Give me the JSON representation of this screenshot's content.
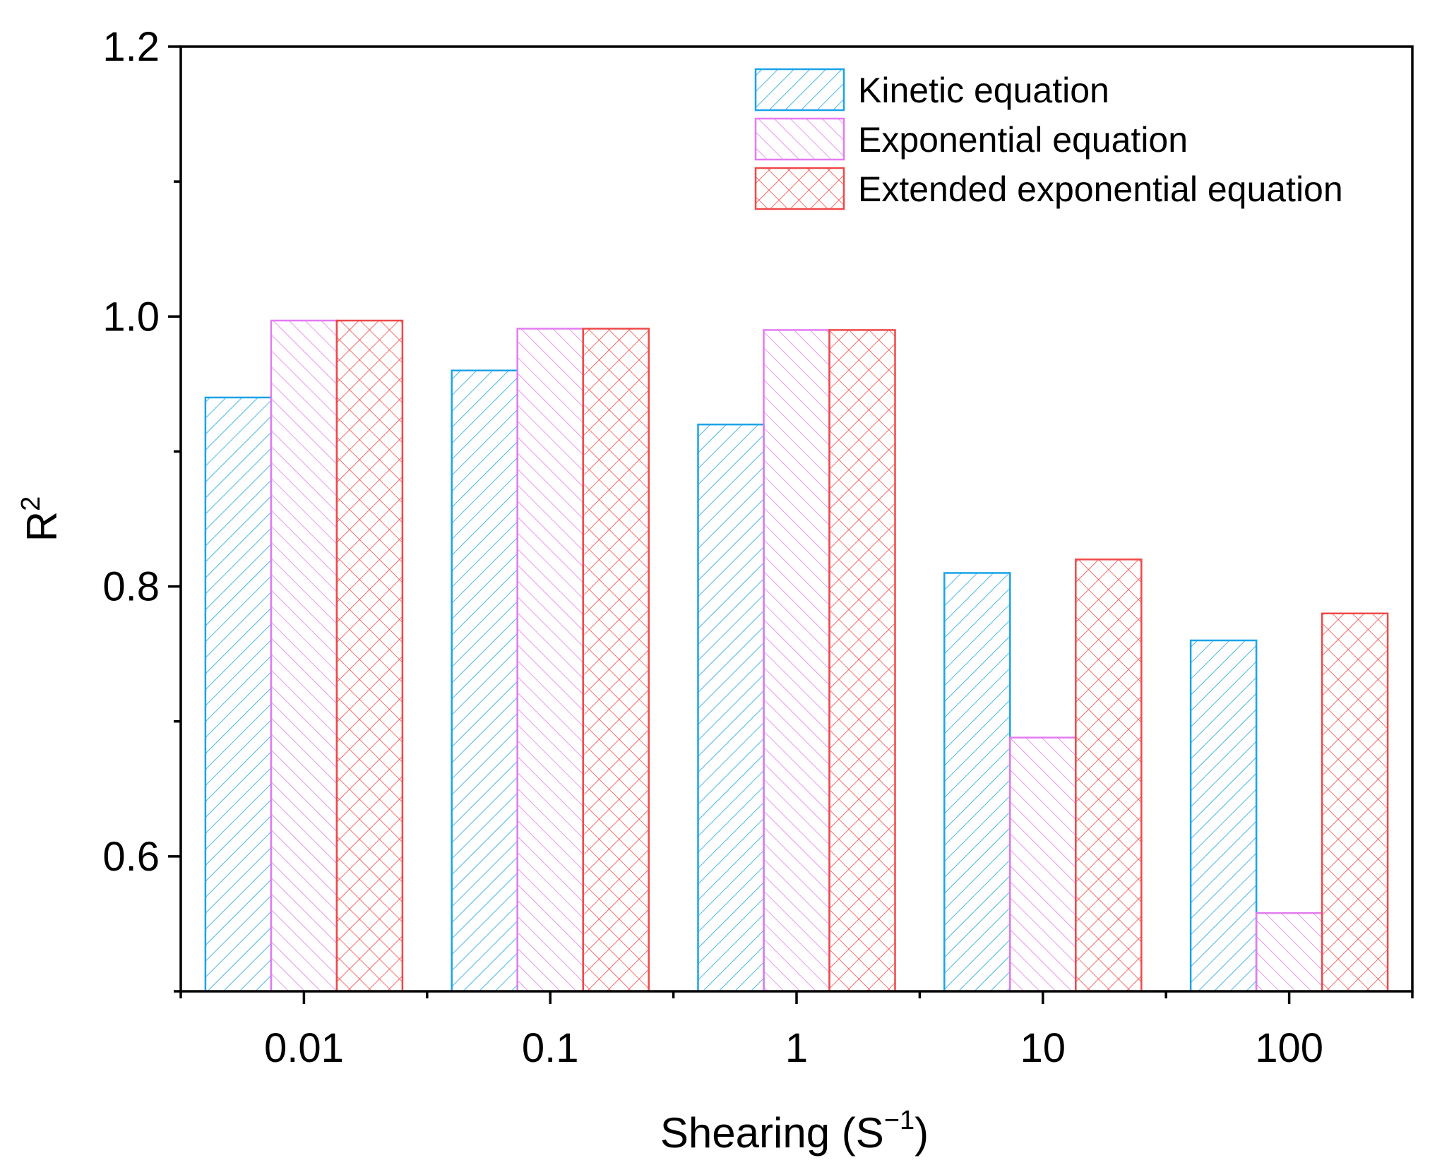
{
  "chart_data": {
    "type": "bar",
    "categories": [
      "0.01",
      "0.1",
      "1",
      "10",
      "100"
    ],
    "series": [
      {
        "name": "Kinetic equation",
        "values": [
          0.94,
          0.96,
          0.92,
          0.81,
          0.76
        ],
        "color": "#1aa3e8",
        "pattern": "forward-hatch"
      },
      {
        "name": "Exponential equation",
        "values": [
          0.997,
          0.991,
          0.99,
          0.688,
          0.558
        ],
        "color": "#e37cf0",
        "pattern": "back-hatch"
      },
      {
        "name": "Extended exponential equation",
        "values": [
          0.997,
          0.991,
          0.99,
          0.82,
          0.78
        ],
        "color": "#f04848",
        "pattern": "cross-hatch"
      }
    ],
    "yticks": [
      "0.6",
      "0.8",
      "1.0",
      "1.2"
    ],
    "ylim": [
      0.5,
      1.2
    ],
    "xlabel": "Shearing (S",
    "xlabel_sup": "−1",
    "xlabel_close": ")",
    "ylabel": "R",
    "ylabel_sup": "2",
    "legend_position": "top-right",
    "grid": false
  }
}
